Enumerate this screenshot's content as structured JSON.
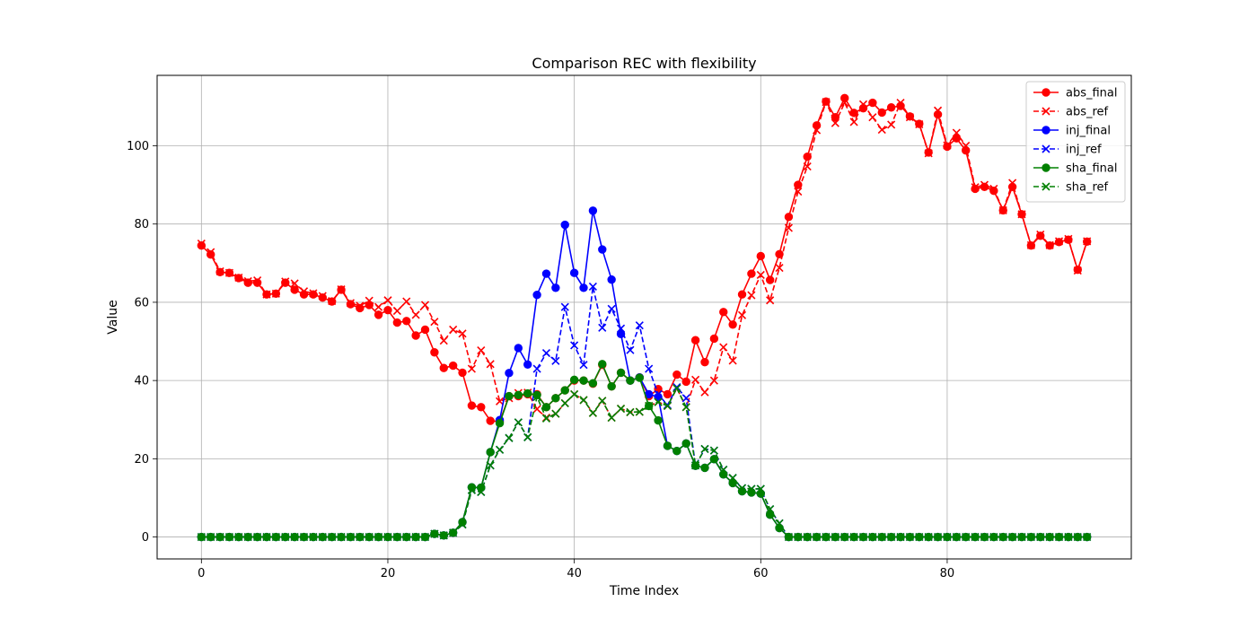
{
  "chart_data": {
    "type": "line",
    "title": "Comparison REC with flexibility",
    "xlabel": "Time Index",
    "ylabel": "Value",
    "xlim": [
      -4.75,
      99.75
    ],
    "ylim": [
      -5.6,
      118.0
    ],
    "xticks": [
      0,
      20,
      40,
      60,
      80
    ],
    "yticks": [
      0,
      20,
      40,
      60,
      80,
      100
    ],
    "grid": true,
    "legend_position": "top-right",
    "series": [
      {
        "name": "abs_final",
        "color": "#ff0000",
        "style": "solid",
        "marker": "circle",
        "values": [
          74.5,
          72.2,
          67.7,
          67.5,
          66.2,
          65,
          65,
          62,
          62.2,
          65,
          63.2,
          62,
          62,
          61.2,
          60.2,
          63.2,
          59.5,
          58.5,
          59.3,
          56.8,
          58,
          54.8,
          55.2,
          51.5,
          53,
          47.2,
          43.2,
          43.8,
          42,
          33.6,
          33.2,
          29.7,
          29.5,
          36,
          36,
          36.5,
          36.5,
          33.2,
          35.5,
          37.5,
          40,
          40,
          39.2,
          44,
          38.5,
          42,
          40,
          40.8,
          36,
          37.8,
          36.5,
          41.5,
          39.7,
          50.3,
          44.7,
          50.7,
          57.5,
          54.3,
          62,
          67.3,
          71.8,
          65.7,
          72.3,
          81.8,
          90,
          97.2,
          105.2,
          111.3,
          107.3,
          112.2,
          108.4,
          109.6,
          111,
          108.5,
          109.8,
          110.2,
          107.5,
          105.6,
          98.3,
          108,
          99.8,
          101.9,
          98.8,
          89,
          89.5,
          88.5,
          83.5,
          89.5,
          82.5,
          74.5,
          77,
          74.5,
          75.4,
          76,
          68.3,
          75.5
        ]
      },
      {
        "name": "abs_ref",
        "color": "#ff0000",
        "style": "dashed",
        "marker": "x",
        "values": [
          75,
          72.8,
          67.9,
          67.5,
          66.3,
          65.4,
          65.6,
          62,
          62.2,
          65.3,
          64.8,
          62.8,
          62.3,
          61.6,
          60.3,
          63.3,
          59.8,
          59.1,
          60.4,
          58.8,
          60.5,
          57.8,
          60.2,
          56.8,
          59.3,
          55,
          50.2,
          53,
          52,
          43,
          47.7,
          44.2,
          34.7,
          35.5,
          36.8,
          36.9,
          32.7,
          30.5,
          31.5,
          34.2,
          36.5,
          35,
          31.7,
          34.8,
          30.5,
          32.8,
          31.9,
          32,
          33.5,
          34.5,
          33.5,
          38,
          33.2,
          40.2,
          37,
          40,
          48.5,
          45.1,
          56.7,
          61.8,
          67,
          60.5,
          68.8,
          79,
          88.3,
          94.7,
          104,
          111.2,
          105.8,
          111,
          106.1,
          110.6,
          107.3,
          104.1,
          105.4,
          111,
          107.3,
          105.5,
          98.1,
          109,
          100.1,
          103.3,
          100,
          89.4,
          90,
          89,
          83.5,
          90.5,
          82.5,
          74.6,
          77.3,
          74.6,
          75.6,
          76.2,
          68.1,
          75.6
        ]
      },
      {
        "name": "inj_final",
        "color": "#0000ff",
        "style": "solid",
        "marker": "circle",
        "values": [
          0,
          0,
          0,
          0,
          0,
          0,
          0,
          0,
          0,
          0,
          0,
          0,
          0,
          0,
          0,
          0,
          0,
          0,
          0,
          0,
          0,
          0,
          0,
          0,
          0,
          0.8,
          0.4,
          1.1,
          3.8,
          12.7,
          12.6,
          21.7,
          29.9,
          41.9,
          48.3,
          44.1,
          61.9,
          67.3,
          63.7,
          79.8,
          67.5,
          63.7,
          83.4,
          73.5,
          65.8,
          51.9,
          40,
          40.8,
          36.5,
          35.8,
          23.3,
          22,
          23.9,
          18.2,
          17.7,
          19.9,
          16,
          13.8,
          11.7,
          11.4,
          11.1,
          5.7,
          2.3,
          0,
          0,
          0,
          0,
          0,
          0,
          0,
          0,
          0,
          0,
          0,
          0,
          0,
          0,
          0,
          0,
          0,
          0,
          0,
          0,
          0,
          0,
          0,
          0,
          0,
          0,
          0,
          0,
          0,
          0,
          0,
          0,
          0
        ]
      },
      {
        "name": "inj_ref",
        "color": "#0000ff",
        "style": "dashed",
        "marker": "x",
        "values": [
          0,
          0,
          0,
          0,
          0,
          0,
          0,
          0,
          0,
          0,
          0,
          0,
          0,
          0,
          0,
          0,
          0,
          0,
          0,
          0,
          0,
          0,
          0,
          0,
          0,
          0.8,
          0.4,
          1.1,
          3.2,
          12,
          11.5,
          18.3,
          22.3,
          25.3,
          29.3,
          25.5,
          43,
          47,
          45,
          58.8,
          49,
          44,
          64,
          53.5,
          58.3,
          53.3,
          47.8,
          54.1,
          43,
          36.5,
          33.7,
          38.3,
          35.5,
          18.3,
          22.5,
          22.1,
          17.2,
          15.1,
          12.5,
          12.3,
          12.3,
          7.1,
          3.5,
          0,
          0,
          0,
          0,
          0,
          0,
          0,
          0,
          0,
          0,
          0,
          0,
          0,
          0,
          0,
          0,
          0,
          0,
          0,
          0,
          0,
          0,
          0,
          0,
          0,
          0,
          0,
          0,
          0,
          0,
          0,
          0,
          0
        ]
      },
      {
        "name": "sha_final",
        "color": "#008000",
        "style": "solid",
        "marker": "circle",
        "values": [
          0,
          0,
          0,
          0,
          0,
          0,
          0,
          0,
          0,
          0,
          0,
          0,
          0,
          0,
          0,
          0,
          0,
          0,
          0,
          0,
          0,
          0,
          0,
          0,
          0,
          0.8,
          0.4,
          1.1,
          3.8,
          12.7,
          12.6,
          21.7,
          29.1,
          36,
          36.3,
          36.7,
          36.3,
          33.2,
          35.5,
          37.5,
          40.2,
          40,
          39.3,
          44.2,
          38.5,
          42,
          40,
          40.7,
          33.5,
          29.8,
          23.3,
          22,
          23.9,
          18.2,
          17.7,
          19.9,
          16,
          13.8,
          11.7,
          11.4,
          11.1,
          5.7,
          2.3,
          0,
          0,
          0,
          0,
          0,
          0,
          0,
          0,
          0,
          0,
          0,
          0,
          0,
          0,
          0,
          0,
          0,
          0,
          0,
          0,
          0,
          0,
          0,
          0,
          0,
          0,
          0,
          0,
          0,
          0,
          0,
          0,
          0
        ]
      },
      {
        "name": "sha_ref",
        "color": "#008000",
        "style": "dashed",
        "marker": "x",
        "values": [
          0,
          0,
          0,
          0,
          0,
          0,
          0,
          0,
          0,
          0,
          0,
          0,
          0,
          0,
          0,
          0,
          0,
          0,
          0,
          0,
          0,
          0,
          0,
          0,
          0,
          0.8,
          0.4,
          1.1,
          3.2,
          12,
          11.5,
          18.3,
          22.3,
          25.3,
          29.3,
          25.5,
          35.8,
          30.3,
          31.5,
          34.2,
          36.5,
          35,
          31.7,
          34.8,
          30.5,
          32.8,
          31.9,
          32,
          33.5,
          34.5,
          33.5,
          38,
          33.2,
          18.3,
          22.5,
          22.1,
          17.2,
          15.1,
          12.5,
          12.3,
          12.3,
          7.1,
          3.5,
          0,
          0,
          0,
          0,
          0,
          0,
          0,
          0,
          0,
          0,
          0,
          0,
          0,
          0,
          0,
          0,
          0,
          0,
          0,
          0,
          0,
          0,
          0,
          0,
          0,
          0,
          0,
          0,
          0,
          0,
          0,
          0,
          0
        ]
      }
    ]
  }
}
